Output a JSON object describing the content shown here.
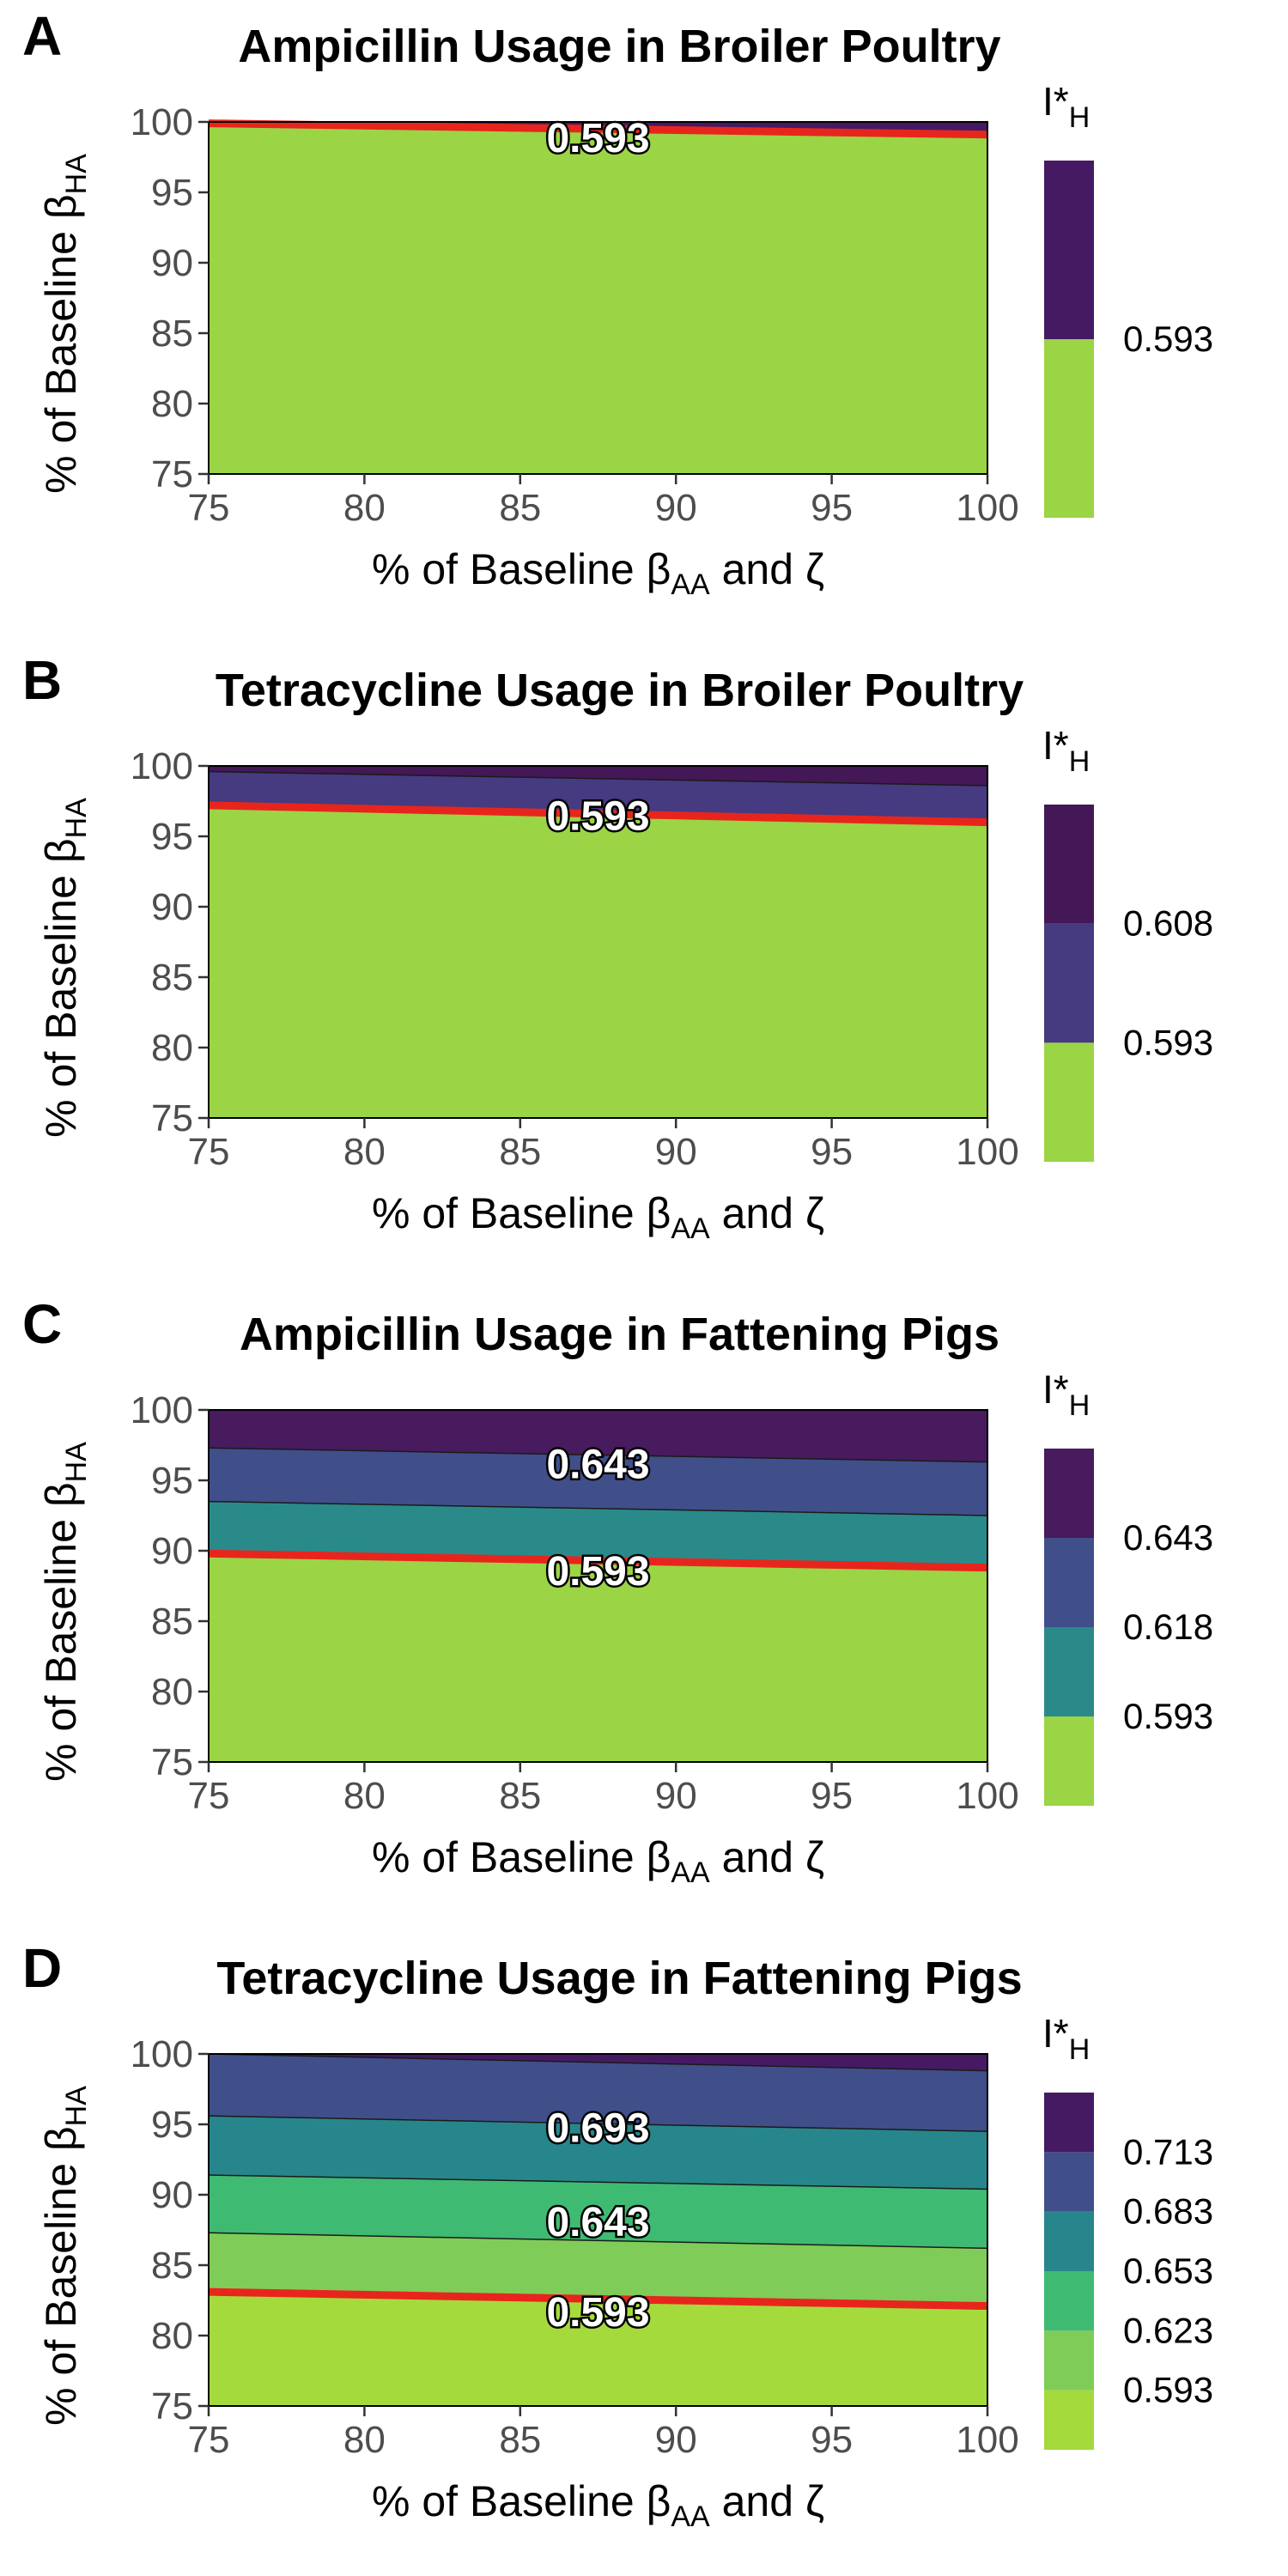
{
  "colors": {
    "boundary": "#e8251c",
    "panel_border": "#000000",
    "tick": "#333333"
  },
  "chart_data": [
    {
      "letter": "A",
      "type": "contour",
      "title": "Ampicillin Usage in Broiler Poultry",
      "xlabel": {
        "main": "% of Baseline β",
        "sub": "AA",
        "tail": " and ζ"
      },
      "ylabel": {
        "main": "% of Baseline β",
        "sub": "HA"
      },
      "xlim": [
        75,
        100
      ],
      "ylim": [
        75,
        100
      ],
      "xticks": [
        75,
        80,
        85,
        90,
        95,
        100
      ],
      "yticks": [
        75,
        80,
        85,
        90,
        95,
        100
      ],
      "legend_title": {
        "main": "I*",
        "sub": "H"
      },
      "legend_breaks": [
        "0.593"
      ],
      "bands": [
        {
          "lower_left": 75,
          "lower_right": 75,
          "upper_left": 99.9,
          "upper_right": 99.1,
          "color": "#9bd445"
        },
        {
          "lower_left": 99.9,
          "lower_right": 99.1,
          "upper_left": 100,
          "upper_right": 100,
          "color": "#451a63"
        }
      ],
      "boundary_line": {
        "left": 99.9,
        "right": 99.1,
        "value": "0.593"
      },
      "contour_labels": [
        {
          "text": "0.593",
          "x": 87.5,
          "y": 98.9
        }
      ],
      "legend_colors": [
        "#9bd445",
        "#451a63"
      ]
    },
    {
      "letter": "B",
      "type": "contour",
      "title": "Tetracycline Usage in Broiler Poultry",
      "xlabel": {
        "main": "% of Baseline β",
        "sub": "AA",
        "tail": " and ζ"
      },
      "ylabel": {
        "main": "% of Baseline β",
        "sub": "HA"
      },
      "xlim": [
        75,
        100
      ],
      "ylim": [
        75,
        100
      ],
      "xticks": [
        75,
        80,
        85,
        90,
        95,
        100
      ],
      "yticks": [
        75,
        80,
        85,
        90,
        95,
        100
      ],
      "legend_title": {
        "main": "I*",
        "sub": "H"
      },
      "legend_breaks": [
        "0.608",
        "0.593"
      ],
      "bands": [
        {
          "lower_left": 75,
          "lower_right": 75,
          "upper_left": 97.2,
          "upper_right": 96.0,
          "color": "#9bd445"
        },
        {
          "lower_left": 97.2,
          "lower_right": 96.0,
          "upper_left": 99.6,
          "upper_right": 98.6,
          "color": "#463a80"
        },
        {
          "lower_left": 99.6,
          "lower_right": 98.6,
          "upper_left": 100,
          "upper_right": 100,
          "color": "#441757"
        }
      ],
      "boundary_line": {
        "left": 97.2,
        "right": 96.0,
        "value": "0.593"
      },
      "contour_labels": [
        {
          "text": "0.593",
          "x": 87.5,
          "y": 96.5
        }
      ],
      "legend_colors": [
        "#9bd445",
        "#463a80",
        "#441757"
      ]
    },
    {
      "letter": "C",
      "type": "contour",
      "title": "Ampicillin Usage in Fattening Pigs",
      "xlabel": {
        "main": "% of Baseline β",
        "sub": "AA",
        "tail": " and ζ"
      },
      "ylabel": {
        "main": "% of Baseline β",
        "sub": "HA"
      },
      "xlim": [
        75,
        100
      ],
      "ylim": [
        75,
        100
      ],
      "xticks": [
        75,
        80,
        85,
        90,
        95,
        100
      ],
      "yticks": [
        75,
        80,
        85,
        90,
        95,
        100
      ],
      "legend_title": {
        "main": "I*",
        "sub": "H"
      },
      "legend_breaks": [
        "0.643",
        "0.618",
        "0.593"
      ],
      "bands": [
        {
          "lower_left": 75,
          "lower_right": 75,
          "upper_left": 89.8,
          "upper_right": 88.8,
          "color": "#9bd445"
        },
        {
          "lower_left": 89.8,
          "lower_right": 88.8,
          "upper_left": 93.5,
          "upper_right": 92.5,
          "color": "#2a8a8a"
        },
        {
          "lower_left": 93.5,
          "lower_right": 92.5,
          "upper_left": 97.3,
          "upper_right": 96.3,
          "color": "#404f8a"
        },
        {
          "lower_left": 97.3,
          "lower_right": 96.3,
          "upper_left": 100,
          "upper_right": 100,
          "color": "#481a5e"
        }
      ],
      "boundary_line": {
        "left": 89.8,
        "right": 88.8,
        "value": "0.593"
      },
      "contour_labels": [
        {
          "text": "0.643",
          "x": 87.5,
          "y": 96.2
        },
        {
          "text": "0.593",
          "x": 87.5,
          "y": 88.6
        }
      ],
      "legend_colors": [
        "#9bd445",
        "#2a8a8a",
        "#404f8a",
        "#481a5e"
      ]
    },
    {
      "letter": "D",
      "type": "contour",
      "title": "Tetracycline Usage in Fattening Pigs",
      "xlabel": {
        "main": "% of Baseline β",
        "sub": "AA",
        "tail": " and ζ"
      },
      "ylabel": {
        "main": "% of Baseline β",
        "sub": "HA"
      },
      "xlim": [
        75,
        100
      ],
      "ylim": [
        75,
        100
      ],
      "xticks": [
        75,
        80,
        85,
        90,
        95,
        100
      ],
      "yticks": [
        75,
        80,
        85,
        90,
        95,
        100
      ],
      "legend_title": {
        "main": "I*",
        "sub": "H"
      },
      "legend_breaks": [
        "0.713",
        "0.683",
        "0.653",
        "0.623",
        "0.593"
      ],
      "bands": [
        {
          "lower_left": 75,
          "lower_right": 75,
          "upper_left": 83.1,
          "upper_right": 82.1,
          "color": "#a5da3c"
        },
        {
          "lower_left": 83.1,
          "lower_right": 82.1,
          "upper_left": 87.3,
          "upper_right": 86.2,
          "color": "#80cc58"
        },
        {
          "lower_left": 87.3,
          "lower_right": 86.2,
          "upper_left": 91.4,
          "upper_right": 90.4,
          "color": "#3fba72"
        },
        {
          "lower_left": 91.4,
          "lower_right": 90.4,
          "upper_left": 95.6,
          "upper_right": 94.5,
          "color": "#27868c"
        },
        {
          "lower_left": 95.6,
          "lower_right": 94.5,
          "upper_left": 100,
          "upper_right": 98.8,
          "color": "#404f8a"
        },
        {
          "lower_left": 100,
          "lower_right": 98.8,
          "upper_left": 100,
          "upper_right": 100,
          "color": "#451a63"
        }
      ],
      "boundary_line": {
        "left": 83.1,
        "right": 82.1,
        "value": "0.593"
      },
      "contour_labels": [
        {
          "text": "0.693",
          "x": 87.5,
          "y": 94.8
        },
        {
          "text": "0.643",
          "x": 87.5,
          "y": 88.1
        },
        {
          "text": "0.593",
          "x": 87.5,
          "y": 81.7
        }
      ],
      "legend_colors": [
        "#a5da3c",
        "#80cc58",
        "#3fba72",
        "#27868c",
        "#404f8a",
        "#451a63"
      ]
    }
  ]
}
